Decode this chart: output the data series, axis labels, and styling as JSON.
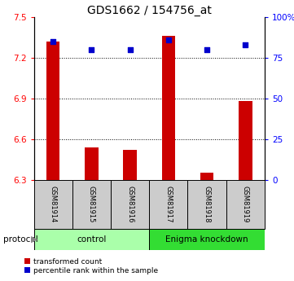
{
  "title": "GDS1662 / 154756_at",
  "samples": [
    "GSM81914",
    "GSM81915",
    "GSM81916",
    "GSM81917",
    "GSM81918",
    "GSM81919"
  ],
  "red_values": [
    7.32,
    6.54,
    6.52,
    7.36,
    6.35,
    6.88
  ],
  "blue_values": [
    85,
    80,
    80,
    86,
    80,
    83
  ],
  "ylim_left": [
    6.3,
    7.5
  ],
  "ylim_right": [
    0,
    100
  ],
  "yticks_left": [
    6.3,
    6.6,
    6.9,
    7.2,
    7.5
  ],
  "yticks_right": [
    0,
    25,
    50,
    75,
    100
  ],
  "ytick_labels_right": [
    "0",
    "25",
    "50",
    "75",
    "100%"
  ],
  "grid_lines": [
    7.2,
    6.9,
    6.6
  ],
  "control_label": "control",
  "knockdown_label": "Enigma knockdown",
  "protocol_label": "protocol",
  "legend_red": "transformed count",
  "legend_blue": "percentile rank within the sample",
  "bar_color": "#CC0000",
  "dot_color": "#0000CC",
  "control_bg": "#AAFFAA",
  "knockdown_bg": "#33DD33",
  "sample_box_bg": "#CCCCCC",
  "bar_bottom": 6.3,
  "title_fontsize": 10,
  "tick_fontsize": 7.5,
  "bar_width": 0.35
}
